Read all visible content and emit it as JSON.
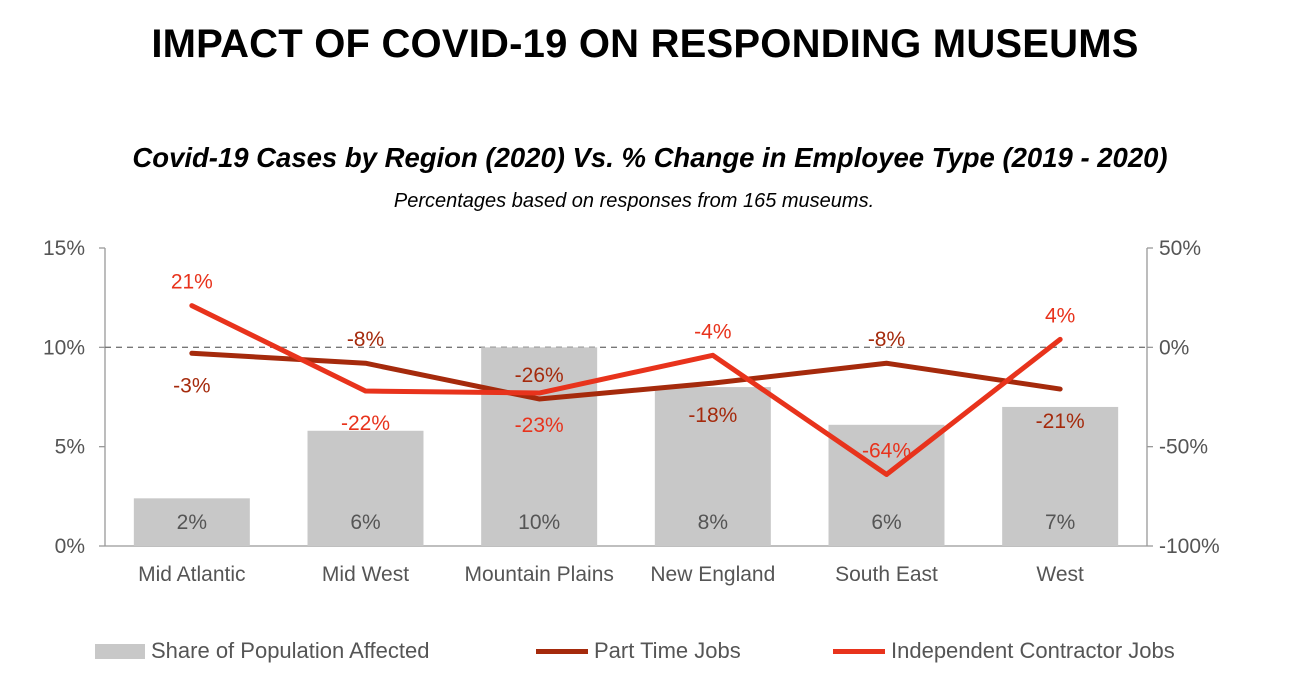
{
  "page": {
    "title": "IMPACT OF COVID-19 ON RESPONDING MUSEUMS"
  },
  "chart_data": {
    "type": "bar",
    "title": "Covid-19 Cases by Region (2020) Vs. % Change in Employee Type (2019 - 2020)",
    "subtitle": "Percentages based on responses from 165 museums.",
    "categories": [
      "Mid Atlantic",
      "Mid West",
      "Mountain Plains",
      "New England",
      "South East",
      "West"
    ],
    "left_axis": {
      "ylim": [
        0,
        15
      ],
      "ticks": [
        0,
        5,
        10,
        15
      ],
      "tick_labels": [
        "0%",
        "5%",
        "10%",
        "15%"
      ]
    },
    "right_axis": {
      "ylim": [
        -100,
        50
      ],
      "ticks": [
        -100,
        -50,
        0,
        50
      ],
      "tick_labels": [
        "-100%",
        "-50%",
        "0%",
        "50%"
      ]
    },
    "zero_reference_line": "dashed at 0% on right axis",
    "series": [
      {
        "name": "Share of Population Affected",
        "kind": "bar",
        "axis": "left",
        "color": "#c8c8c8",
        "values": [
          2.4,
          5.8,
          10.0,
          8.0,
          6.1,
          7.0
        ],
        "labels": [
          "2%",
          "6%",
          "10%",
          "8%",
          "6%",
          "7%"
        ]
      },
      {
        "name": "Part Time Jobs",
        "kind": "line",
        "axis": "right",
        "color": "#a52a0c",
        "values": [
          -3,
          -8,
          -26,
          -18,
          -8,
          -21
        ],
        "labels": [
          "-3%",
          "-8%",
          "-26%",
          "-18%",
          "-8%",
          "-21%"
        ]
      },
      {
        "name": "Independent Contractor Jobs",
        "kind": "line",
        "axis": "right",
        "color": "#e8331c",
        "values": [
          21,
          -22,
          -23,
          -4,
          -64,
          4
        ],
        "labels": [
          "21%",
          "-22%",
          "-23%",
          "-4%",
          "-64%",
          "4%"
        ]
      }
    ],
    "legend": "bottom",
    "grid": false
  }
}
